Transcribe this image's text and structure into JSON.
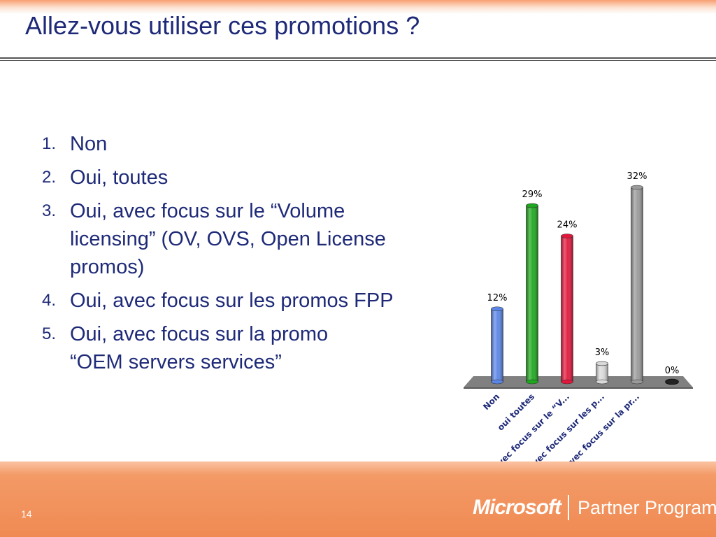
{
  "slide": {
    "title": "Allez-vous utiliser ces promotions ?",
    "page_number": "14"
  },
  "options": [
    {
      "number": "1.",
      "text": "Non"
    },
    {
      "number": "2.",
      "text": "Oui, toutes"
    },
    {
      "number": "3.",
      "text": "Oui, avec focus sur le “Volume licensing” (OV, OVS, Open License promos)"
    },
    {
      "number": "4.",
      "text": "Oui, avec focus sur les promos FPP"
    },
    {
      "number": "5.",
      "text": "Oui, avec focus sur la promo “OEM servers services”"
    }
  ],
  "footer": {
    "brand": "Microsoft",
    "program": "Partner Program"
  },
  "chart_data": {
    "type": "bar",
    "categories": [
      "Non",
      "oui toutes",
      "oui avec focus sur le “V...",
      "oui avec focus sur les p...",
      "oui avec focus sur la pr...",
      ""
    ],
    "values": [
      12,
      29,
      24,
      3,
      32,
      0
    ],
    "data_labels": [
      "12%",
      "29%",
      "24%",
      "3%",
      "32%",
      "0%"
    ],
    "colors": [
      "#5b86e6",
      "#1ea81e",
      "#e2173b",
      "#d9d9d9",
      "#9a9a9a",
      "#222222"
    ],
    "title": "",
    "xlabel": "",
    "ylabel": "",
    "ylim": [
      0,
      32
    ],
    "grid": false,
    "legend": "none"
  }
}
